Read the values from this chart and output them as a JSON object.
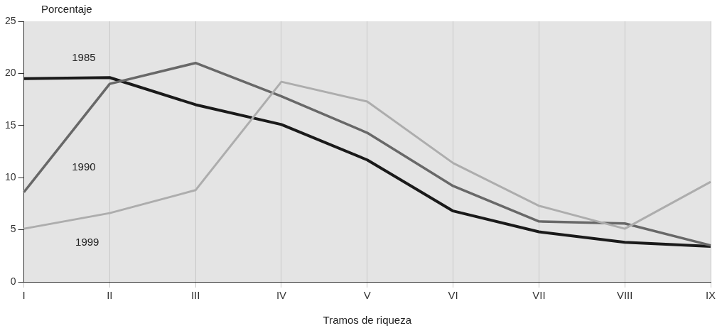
{
  "chart_data": {
    "type": "line",
    "ylabel": "Porcentaje",
    "xlabel": "Tramos de riqueza",
    "categories": [
      "I",
      "II",
      "III",
      "IV",
      "V",
      "VI",
      "VII",
      "VIII",
      "IX"
    ],
    "series": [
      {
        "name": "1985",
        "color": "#1a1a1a",
        "values": [
          19.5,
          19.6,
          17.0,
          15.1,
          11.7,
          6.8,
          4.8,
          3.8,
          3.4
        ]
      },
      {
        "name": "1990",
        "color": "#686868",
        "values": [
          8.6,
          19.0,
          21.0,
          17.8,
          14.3,
          9.2,
          5.8,
          5.6,
          3.5
        ]
      },
      {
        "name": "1999",
        "color": "#adadad",
        "values": [
          5.1,
          6.6,
          8.8,
          19.2,
          17.3,
          11.4,
          7.3,
          5.1,
          9.6
        ]
      }
    ],
    "ylim": [
      0,
      25
    ],
    "yticks": [
      0,
      5,
      10,
      15,
      20,
      25
    ],
    "grid": "x",
    "legend": false,
    "marker": "none",
    "line_style": "solid"
  }
}
